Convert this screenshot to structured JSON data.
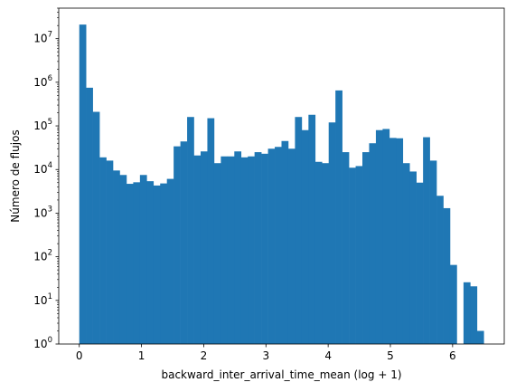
{
  "chart_data": {
    "type": "bar",
    "title": "",
    "xlabel": "backward_inter_arrival_time_mean (log + 1)",
    "ylabel": "Número de flujos",
    "yscale": "log",
    "xlim": [
      -0.33,
      6.83
    ],
    "ylim": [
      1,
      50000000
    ],
    "grid": false,
    "legend": "none",
    "bar_color": "#1f77b4",
    "bin_width": 0.1083,
    "x": [
      0.0,
      0.1083,
      0.2167,
      0.325,
      0.4333,
      0.5417,
      0.65,
      0.7583,
      0.8667,
      0.975,
      1.0833,
      1.1917,
      1.3,
      1.4083,
      1.5167,
      1.625,
      1.7333,
      1.8417,
      1.95,
      2.0583,
      2.1667,
      2.275,
      2.3833,
      2.4917,
      2.6,
      2.7083,
      2.8167,
      2.925,
      3.0333,
      3.1417,
      3.25,
      3.3583,
      3.4667,
      3.575,
      3.6833,
      3.7917,
      3.9,
      4.0083,
      4.1167,
      4.225,
      4.3333,
      4.4417,
      4.55,
      4.6583,
      4.7667,
      4.875,
      4.9833,
      5.0917,
      5.2,
      5.3083,
      5.4167,
      5.525,
      5.6333,
      5.7417,
      5.85,
      5.9583,
      6.0667,
      6.175,
      6.2833,
      6.3917
    ],
    "values": [
      21000000,
      750000,
      210000,
      19000,
      16000,
      9500,
      7500,
      4700,
      5100,
      7500,
      5400,
      4300,
      4800,
      6100,
      34000,
      44000,
      160000,
      21000,
      26000,
      150000,
      14000,
      20000,
      20000,
      26000,
      19000,
      20000,
      25000,
      23000,
      30000,
      33000,
      45000,
      30000,
      160000,
      80000,
      180000,
      15000,
      14000,
      120000,
      650000,
      25000,
      11000,
      12000,
      25000,
      40000,
      80000,
      85000,
      53000,
      52000,
      14000,
      9000,
      5000,
      55000,
      16000,
      2500,
      1300,
      65,
      0,
      26,
      21,
      2
    ],
    "xticks": [
      0,
      1,
      2,
      3,
      4,
      5,
      6
    ],
    "xtick_labels": [
      "0",
      "1",
      "2",
      "3",
      "4",
      "5",
      "6"
    ],
    "yticks": [
      1,
      10,
      100,
      1000,
      10000,
      100000,
      1000000,
      10000000
    ],
    "ytick_labels": [
      {
        "base": "10",
        "exp": "0"
      },
      {
        "base": "10",
        "exp": "1"
      },
      {
        "base": "10",
        "exp": "2"
      },
      {
        "base": "10",
        "exp": "3"
      },
      {
        "base": "10",
        "exp": "4"
      },
      {
        "base": "10",
        "exp": "5"
      },
      {
        "base": "10",
        "exp": "6"
      },
      {
        "base": "10",
        "exp": "7"
      }
    ]
  }
}
